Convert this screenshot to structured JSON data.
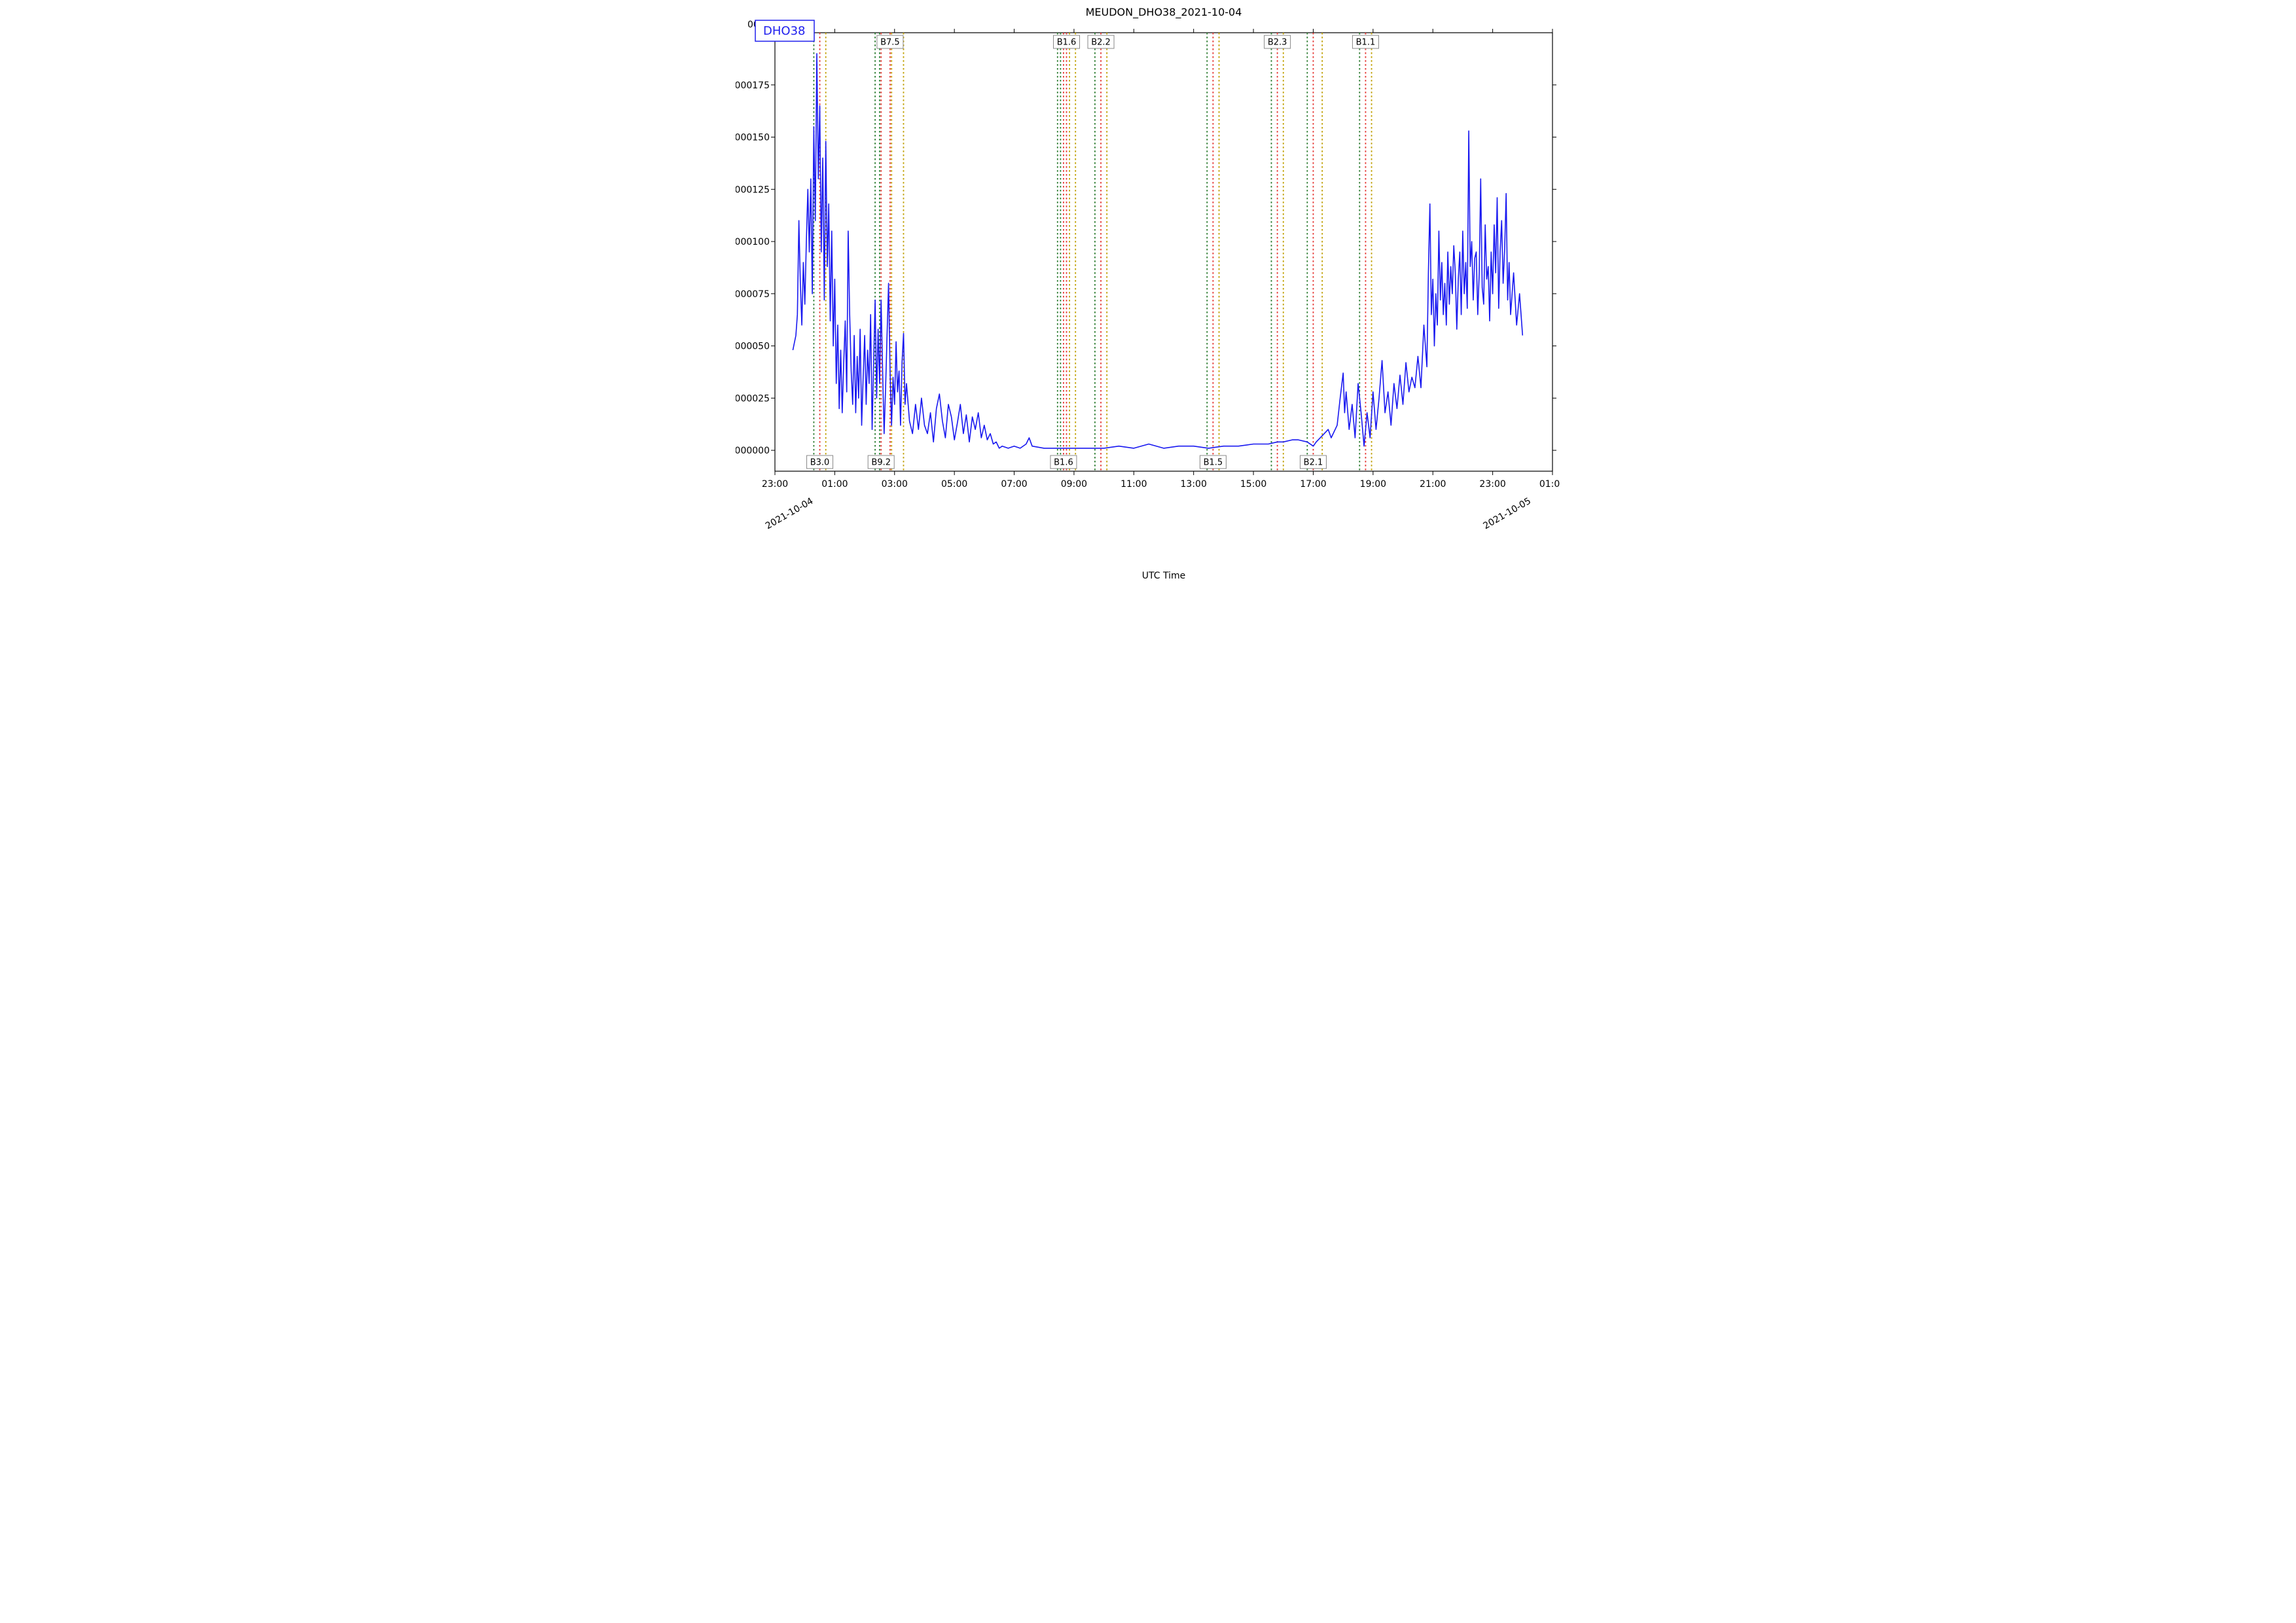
{
  "chart": {
    "type": "line",
    "title": "MEUDON_DHO38_2021-10-04",
    "title_fontsize": 16,
    "xlabel": "UTC Time",
    "label_fontsize": 14,
    "background_color": "#ffffff",
    "axis_color": "#000000",
    "series": {
      "name": "DHO38",
      "color": "#1818f0",
      "line_width": 1.6
    },
    "legend": {
      "text": "DHO38",
      "border_color": "#2020ee",
      "text_color": "#2020ee",
      "fontsize": 18,
      "position": "upper-left"
    },
    "y_axis": {
      "lim": [
        -1e-05,
        0.0002
      ],
      "ticks": [
        0.0,
        2.5e-05,
        5e-05,
        7.5e-05,
        0.0001,
        0.000125,
        0.00015,
        0.000175
      ],
      "tick_labels": [
        "000000",
        "000025",
        "000050",
        "000075",
        "000100",
        "000125",
        "000150",
        "000175"
      ],
      "truncated_label": "0000"
    },
    "x_axis": {
      "lim_hours": [
        -1.0,
        25.0
      ],
      "ticks_hours": [
        -1,
        1,
        3,
        5,
        7,
        9,
        11,
        13,
        15,
        17,
        19,
        21,
        23,
        25
      ],
      "tick_labels": [
        "23:00",
        "01:00",
        "03:00",
        "05:00",
        "07:00",
        "09:00",
        "11:00",
        "13:00",
        "15:00",
        "17:00",
        "19:00",
        "21:00",
        "23:00",
        "01:00"
      ],
      "date_marks": [
        {
          "hour": 0.3,
          "label": "2021-10-04"
        },
        {
          "hour": 24.3,
          "label": "2021-10-05"
        }
      ]
    },
    "flares": [
      {
        "start_h": 0.3,
        "peak_h": 0.5,
        "end_h": 0.7,
        "label": "B3.0",
        "row": "bottom"
      },
      {
        "start_h": 2.35,
        "peak_h": 2.55,
        "end_h": 2.9,
        "label": "B9.2",
        "row": "bottom"
      },
      {
        "start_h": 2.5,
        "peak_h": 2.85,
        "end_h": 3.3,
        "label": "B7.5",
        "row": "top"
      },
      {
        "start_h": 8.45,
        "peak_h": 8.65,
        "end_h": 8.85,
        "label": "B1.6",
        "row": "bottom"
      },
      {
        "start_h": 8.55,
        "peak_h": 8.75,
        "end_h": 9.05,
        "label": "B1.6",
        "row": "top"
      },
      {
        "start_h": 9.7,
        "peak_h": 9.9,
        "end_h": 10.1,
        "label": "B2.2",
        "row": "top"
      },
      {
        "start_h": 13.45,
        "peak_h": 13.65,
        "end_h": 13.85,
        "label": "B1.5",
        "row": "bottom"
      },
      {
        "start_h": 15.6,
        "peak_h": 15.8,
        "end_h": 16.0,
        "label": "B2.3",
        "row": "top"
      },
      {
        "start_h": 16.8,
        "peak_h": 17.0,
        "end_h": 17.3,
        "label": "B2.1",
        "row": "bottom"
      },
      {
        "start_h": 18.55,
        "peak_h": 18.75,
        "end_h": 18.95,
        "label": "B1.1",
        "row": "top"
      }
    ],
    "flare_colors": {
      "start": "#2e7d32",
      "peak": "#e53935",
      "end": "#c0a000"
    },
    "data": [
      [
        -0.4,
        4.8e-05
      ],
      [
        -0.3,
        5.5e-05
      ],
      [
        -0.25,
        6.5e-05
      ],
      [
        -0.2,
        0.00011
      ],
      [
        -0.15,
        8e-05
      ],
      [
        -0.1,
        6e-05
      ],
      [
        -0.05,
        9e-05
      ],
      [
        0.0,
        7e-05
      ],
      [
        0.05,
        0.0001
      ],
      [
        0.1,
        0.000125
      ],
      [
        0.15,
        9.5e-05
      ],
      [
        0.2,
        0.00013
      ],
      [
        0.25,
        7.5e-05
      ],
      [
        0.3,
        0.000155
      ],
      [
        0.35,
        0.00011
      ],
      [
        0.4,
        0.00019
      ],
      [
        0.45,
        0.00013
      ],
      [
        0.5,
        0.000165
      ],
      [
        0.55,
        9.5e-05
      ],
      [
        0.6,
        0.00014
      ],
      [
        0.65,
        7.2e-05
      ],
      [
        0.7,
        0.000148
      ],
      [
        0.75,
        8.8e-05
      ],
      [
        0.8,
        0.000118
      ],
      [
        0.85,
        6.2e-05
      ],
      [
        0.9,
        0.000105
      ],
      [
        0.95,
        5e-05
      ],
      [
        1.0,
        8.2e-05
      ],
      [
        1.05,
        3.2e-05
      ],
      [
        1.1,
        6e-05
      ],
      [
        1.15,
        2e-05
      ],
      [
        1.2,
        4.8e-05
      ],
      [
        1.25,
        1.8e-05
      ],
      [
        1.3,
        4.2e-05
      ],
      [
        1.35,
        6.2e-05
      ],
      [
        1.4,
        2.8e-05
      ],
      [
        1.45,
        0.000105
      ],
      [
        1.5,
        6.5e-05
      ],
      [
        1.55,
        3.8e-05
      ],
      [
        1.6,
        2.2e-05
      ],
      [
        1.65,
        5.5e-05
      ],
      [
        1.7,
        1.8e-05
      ],
      [
        1.75,
        4.5e-05
      ],
      [
        1.8,
        2.5e-05
      ],
      [
        1.85,
        5.8e-05
      ],
      [
        1.9,
        1.2e-05
      ],
      [
        1.95,
        3.5e-05
      ],
      [
        2.0,
        5.5e-05
      ],
      [
        2.05,
        2.2e-05
      ],
      [
        2.1,
        4.8e-05
      ],
      [
        2.15,
        3.2e-05
      ],
      [
        2.2,
        6.5e-05
      ],
      [
        2.25,
        1e-05
      ],
      [
        2.3,
        4.2e-05
      ],
      [
        2.35,
        7.2e-05
      ],
      [
        2.4,
        2.5e-05
      ],
      [
        2.45,
        5.8e-05
      ],
      [
        2.5,
        3.2e-05
      ],
      [
        2.55,
        7.2e-05
      ],
      [
        2.6,
        3.8e-05
      ],
      [
        2.65,
        8e-06
      ],
      [
        2.7,
        3e-05
      ],
      [
        2.75,
        5.5e-05
      ],
      [
        2.8,
        8e-05
      ],
      [
        2.85,
        3.8e-05
      ],
      [
        2.9,
        1.2e-05
      ],
      [
        2.95,
        3.5e-05
      ],
      [
        3.0,
        2.2e-05
      ],
      [
        3.05,
        5.2e-05
      ],
      [
        3.1,
        2.8e-05
      ],
      [
        3.15,
        3.8e-05
      ],
      [
        3.2,
        1.2e-05
      ],
      [
        3.25,
        4.2e-05
      ],
      [
        3.3,
        5.6e-05
      ],
      [
        3.35,
        2.2e-05
      ],
      [
        3.4,
        3.2e-05
      ],
      [
        3.5,
        1.4e-05
      ],
      [
        3.6,
        8e-06
      ],
      [
        3.7,
        2.2e-05
      ],
      [
        3.8,
        1e-05
      ],
      [
        3.9,
        2.5e-05
      ],
      [
        4.0,
        1.2e-05
      ],
      [
        4.1,
        8e-06
      ],
      [
        4.2,
        1.8e-05
      ],
      [
        4.3,
        4e-06
      ],
      [
        4.4,
        2e-05
      ],
      [
        4.5,
        2.7e-05
      ],
      [
        4.6,
        1.4e-05
      ],
      [
        4.7,
        6e-06
      ],
      [
        4.8,
        2.2e-05
      ],
      [
        4.9,
        1.6e-05
      ],
      [
        5.0,
        5e-06
      ],
      [
        5.1,
        1.3e-05
      ],
      [
        5.2,
        2.2e-05
      ],
      [
        5.3,
        8e-06
      ],
      [
        5.4,
        1.7e-05
      ],
      [
        5.5,
        4e-06
      ],
      [
        5.6,
        1.6e-05
      ],
      [
        5.7,
        1e-05
      ],
      [
        5.8,
        1.8e-05
      ],
      [
        5.9,
        6e-06
      ],
      [
        6.0,
        1.2e-05
      ],
      [
        6.1,
        5e-06
      ],
      [
        6.2,
        8e-06
      ],
      [
        6.3,
        3e-06
      ],
      [
        6.4,
        4e-06
      ],
      [
        6.5,
        1e-06
      ],
      [
        6.6,
        2e-06
      ],
      [
        6.8,
        1e-06
      ],
      [
        7.0,
        2e-06
      ],
      [
        7.2,
        1e-06
      ],
      [
        7.4,
        3e-06
      ],
      [
        7.5,
        6e-06
      ],
      [
        7.6,
        2e-06
      ],
      [
        8.0,
        1e-06
      ],
      [
        8.5,
        1e-06
      ],
      [
        9.0,
        1e-06
      ],
      [
        9.5,
        1e-06
      ],
      [
        10.0,
        1e-06
      ],
      [
        10.5,
        2e-06
      ],
      [
        11.0,
        1e-06
      ],
      [
        11.5,
        3e-06
      ],
      [
        12.0,
        1e-06
      ],
      [
        12.5,
        2e-06
      ],
      [
        13.0,
        2e-06
      ],
      [
        13.5,
        1e-06
      ],
      [
        14.0,
        2e-06
      ],
      [
        14.5,
        2e-06
      ],
      [
        15.0,
        3e-06
      ],
      [
        15.3,
        3e-06
      ],
      [
        15.5,
        3e-06
      ],
      [
        15.8,
        4e-06
      ],
      [
        16.0,
        4e-06
      ],
      [
        16.3,
        5e-06
      ],
      [
        16.5,
        5e-06
      ],
      [
        16.8,
        4e-06
      ],
      [
        17.0,
        2e-06
      ],
      [
        17.1,
        4e-06
      ],
      [
        17.3,
        7e-06
      ],
      [
        17.5,
        1e-05
      ],
      [
        17.6,
        6e-06
      ],
      [
        17.8,
        1.2e-05
      ],
      [
        17.9,
        2.5e-05
      ],
      [
        18.0,
        3.7e-05
      ],
      [
        18.05,
        1.8e-05
      ],
      [
        18.1,
        2.8e-05
      ],
      [
        18.2,
        1e-05
      ],
      [
        18.3,
        2.2e-05
      ],
      [
        18.4,
        6e-06
      ],
      [
        18.5,
        3.2e-05
      ],
      [
        18.6,
        1.8e-05
      ],
      [
        18.7,
        2e-06
      ],
      [
        18.8,
        1.8e-05
      ],
      [
        18.9,
        6e-06
      ],
      [
        19.0,
        2.8e-05
      ],
      [
        19.1,
        1e-05
      ],
      [
        19.2,
        2.5e-05
      ],
      [
        19.3,
        4.3e-05
      ],
      [
        19.4,
        1.8e-05
      ],
      [
        19.5,
        2.8e-05
      ],
      [
        19.6,
        1.2e-05
      ],
      [
        19.7,
        3.2e-05
      ],
      [
        19.8,
        2e-05
      ],
      [
        19.9,
        3.6e-05
      ],
      [
        20.0,
        2.2e-05
      ],
      [
        20.1,
        4.2e-05
      ],
      [
        20.2,
        2.8e-05
      ],
      [
        20.3,
        3.5e-05
      ],
      [
        20.4,
        3e-05
      ],
      [
        20.5,
        4.5e-05
      ],
      [
        20.6,
        3e-05
      ],
      [
        20.7,
        6e-05
      ],
      [
        20.8,
        4e-05
      ],
      [
        20.85,
        8.5e-05
      ],
      [
        20.9,
        0.000118
      ],
      [
        20.95,
        6.5e-05
      ],
      [
        21.0,
        8.2e-05
      ],
      [
        21.05,
        5e-05
      ],
      [
        21.1,
        7.5e-05
      ],
      [
        21.15,
        6e-05
      ],
      [
        21.2,
        0.000105
      ],
      [
        21.25,
        7.2e-05
      ],
      [
        21.3,
        9e-05
      ],
      [
        21.35,
        6.5e-05
      ],
      [
        21.4,
        8e-05
      ],
      [
        21.45,
        6e-05
      ],
      [
        21.5,
        9.5e-05
      ],
      [
        21.55,
        7e-05
      ],
      [
        21.6,
        8.8e-05
      ],
      [
        21.65,
        7.5e-05
      ],
      [
        21.7,
        9.8e-05
      ],
      [
        21.75,
        8.5e-05
      ],
      [
        21.8,
        5.8e-05
      ],
      [
        21.85,
        8.2e-05
      ],
      [
        21.9,
        9.5e-05
      ],
      [
        21.95,
        6.5e-05
      ],
      [
        22.0,
        0.000105
      ],
      [
        22.05,
        7.5e-05
      ],
      [
        22.1,
        9e-05
      ],
      [
        22.15,
        6.8e-05
      ],
      [
        22.2,
        0.000153
      ],
      [
        22.25,
        8.8e-05
      ],
      [
        22.3,
        0.0001
      ],
      [
        22.35,
        7.2e-05
      ],
      [
        22.4,
        9.2e-05
      ],
      [
        22.45,
        9.5e-05
      ],
      [
        22.5,
        6.5e-05
      ],
      [
        22.55,
        8.5e-05
      ],
      [
        22.6,
        0.00013
      ],
      [
        22.65,
        7.8e-05
      ],
      [
        22.7,
        7e-05
      ],
      [
        22.75,
        0.000108
      ],
      [
        22.8,
        8.2e-05
      ],
      [
        22.85,
        8.8e-05
      ],
      [
        22.9,
        6.2e-05
      ],
      [
        22.95,
        9.5e-05
      ],
      [
        23.0,
        7.5e-05
      ],
      [
        23.05,
        0.000108
      ],
      [
        23.1,
        8.5e-05
      ],
      [
        23.15,
        0.000121
      ],
      [
        23.2,
        6.8e-05
      ],
      [
        23.25,
        9.5e-05
      ],
      [
        23.3,
        0.00011
      ],
      [
        23.35,
        8e-05
      ],
      [
        23.4,
        9.6e-05
      ],
      [
        23.45,
        0.000123
      ],
      [
        23.5,
        7.2e-05
      ],
      [
        23.55,
        9e-05
      ],
      [
        23.6,
        6.5e-05
      ],
      [
        23.7,
        8.5e-05
      ],
      [
        23.8,
        6e-05
      ],
      [
        23.9,
        7.5e-05
      ],
      [
        24.0,
        5.5e-05
      ]
    ]
  }
}
